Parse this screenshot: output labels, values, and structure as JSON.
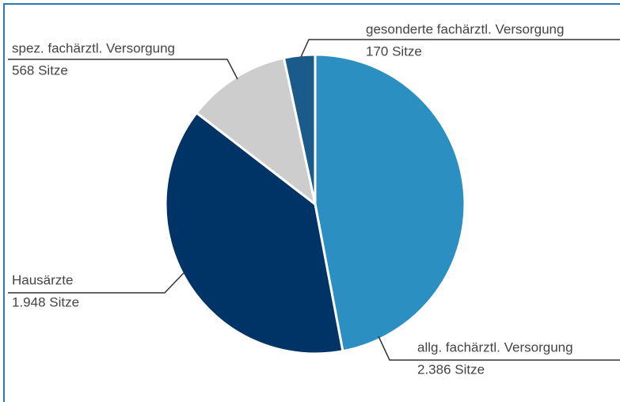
{
  "chart_data": {
    "type": "pie",
    "categories": [
      "allg. fachärztl. Versorgung",
      "Hausärzte",
      "spez. fachärztl. Versorgung",
      "gesonderte fachärztl. Versorgung"
    ],
    "values": [
      2386,
      1948,
      568,
      170
    ],
    "value_labels": [
      "2.386 Sitze",
      "1.948 Sitze",
      "568 Sitze",
      "170 Sitze"
    ],
    "colors": [
      "#2b8fc1",
      "#003366",
      "#cdcdcd",
      "#1b5b8b"
    ]
  }
}
